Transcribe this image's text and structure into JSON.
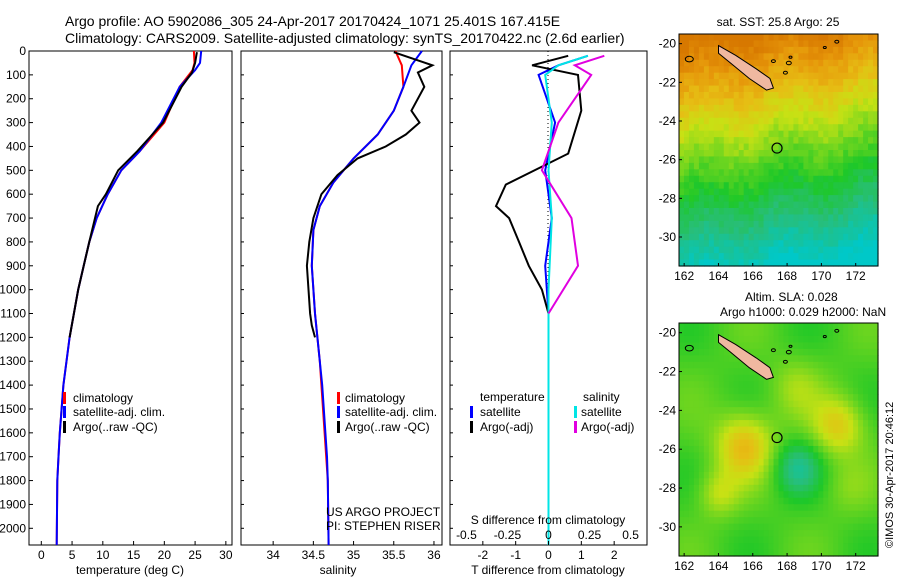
{
  "title": {
    "line1": "Argo profile: AO 5902086_305 24-Apr-2017 20170424_1071 25.401S 167.415E",
    "line2": "Climatology: CARS2009. Satellite-adjusted climatology: synTS_20170422.nc (2.6d earlier)"
  },
  "colors": {
    "climatology": "#ff0000",
    "satellite": "#0000ff",
    "argo": "#000000",
    "sal_satellite": "#00e5e5",
    "sal_argo": "#e000e0",
    "land": "#f0b8a0"
  },
  "chart_data": [
    {
      "type": "line",
      "id": "temperature",
      "xlabel": "temperature (deg C)",
      "xlim": [
        -2,
        31
      ],
      "ylim": [
        2070,
        0
      ],
      "xticks": [
        "0",
        "5",
        "10",
        "15",
        "20",
        "25",
        "30"
      ],
      "xtick_values": [
        0,
        5,
        10,
        15,
        20,
        25,
        30
      ],
      "yticks": [
        "0",
        "100",
        "200",
        "300",
        "400",
        "500",
        "600",
        "700",
        "800",
        "900",
        "1000",
        "1100",
        "1200",
        "1300",
        "1400",
        "1500",
        "1600",
        "1700",
        "1800",
        "1900",
        "2000"
      ],
      "ytick_values": [
        0,
        100,
        200,
        300,
        400,
        500,
        600,
        700,
        800,
        900,
        1000,
        1100,
        1200,
        1300,
        1400,
        1500,
        1600,
        1700,
        1800,
        1900,
        2000
      ],
      "legend": [
        "climatology",
        "satellite-adj. clim.",
        "Argo(..raw -QC)"
      ],
      "series": [
        {
          "name": "climatology",
          "color": "#ff0000",
          "x": [
            24.8,
            24.9,
            24.6,
            22.5,
            20.0,
            16.0,
            13.0,
            10.8,
            9.0,
            7.8,
            6.9,
            6.0,
            5.3,
            4.6,
            4.1,
            3.6,
            3.3,
            3.0,
            2.8,
            2.6,
            2.5
          ],
          "y": [
            0,
            50,
            80,
            150,
            300,
            420,
            500,
            600,
            700,
            800,
            900,
            1000,
            1100,
            1200,
            1300,
            1400,
            1500,
            1600,
            1700,
            1800,
            2070
          ]
        },
        {
          "name": "satellite-adj. clim.",
          "color": "#0000ff",
          "x": [
            26.0,
            25.8,
            25.0,
            22.5,
            19.5,
            16.0,
            13.0,
            10.8,
            9.0,
            7.8,
            6.9,
            6.0,
            5.3,
            4.6,
            4.1,
            3.6,
            3.3,
            3.0,
            2.8,
            2.6,
            2.5
          ],
          "y": [
            0,
            50,
            80,
            150,
            300,
            420,
            500,
            600,
            700,
            800,
            900,
            1000,
            1100,
            1200,
            1300,
            1400,
            1500,
            1600,
            1700,
            1800,
            2070
          ]
        },
        {
          "name": "Argo(..raw -QC)",
          "color": "#000000",
          "x": [
            25.3,
            25.0,
            24.5,
            22.8,
            19.8,
            15.6,
            12.5,
            10.5,
            9.2,
            7.8,
            6.9,
            6.0,
            5.3,
            4.6
          ],
          "y": [
            5,
            50,
            90,
            150,
            300,
            420,
            500,
            600,
            650,
            800,
            900,
            1000,
            1100,
            1200
          ]
        }
      ]
    },
    {
      "type": "line",
      "id": "salinity",
      "xlabel": "salinity",
      "xlim": [
        33.6,
        36.1
      ],
      "ylim": [
        2070,
        0
      ],
      "xticks": [
        "34",
        "34.5",
        "35",
        "35.5",
        "36"
      ],
      "xtick_values": [
        34,
        34.5,
        35,
        35.5,
        36
      ],
      "legend": [
        "climatology",
        "satellite-adj. clim.",
        "Argo(..raw -QC)"
      ],
      "annotations": [
        "US ARGO PROJECT",
        "PI: STEPHEN RISER"
      ],
      "series": [
        {
          "name": "climatology",
          "color": "#ff0000",
          "x": [
            35.52,
            35.6,
            35.62,
            35.5,
            35.3,
            35.0,
            34.75,
            34.58,
            34.5,
            34.48,
            34.5,
            34.52,
            34.55,
            34.58,
            34.6,
            34.62,
            34.64,
            34.66,
            34.68,
            34.69
          ],
          "y": [
            0,
            60,
            150,
            250,
            350,
            450,
            550,
            650,
            750,
            900,
            1000,
            1100,
            1200,
            1300,
            1400,
            1500,
            1600,
            1700,
            1800,
            2070
          ]
        },
        {
          "name": "satellite-adj. clim.",
          "color": "#0000ff",
          "x": [
            35.85,
            35.72,
            35.62,
            35.5,
            35.3,
            35.0,
            34.75,
            34.58,
            34.5,
            34.48,
            34.5,
            34.52,
            34.55,
            34.58,
            34.61,
            34.63,
            34.65,
            34.67,
            34.68,
            34.69
          ],
          "y": [
            0,
            60,
            150,
            250,
            350,
            450,
            550,
            650,
            750,
            900,
            1000,
            1100,
            1200,
            1300,
            1400,
            1500,
            1600,
            1700,
            1800,
            2070
          ]
        },
        {
          "name": "Argo(..raw -QC)",
          "color": "#000000",
          "x": [
            35.5,
            35.98,
            35.8,
            35.88,
            35.72,
            35.82,
            35.65,
            35.4,
            35.05,
            34.8,
            34.6,
            34.5,
            34.45,
            34.42,
            34.44,
            34.46,
            34.48,
            34.52
          ],
          "y": [
            5,
            60,
            90,
            150,
            250,
            300,
            350,
            400,
            450,
            520,
            600,
            700,
            800,
            900,
            1000,
            1100,
            1150,
            1200
          ]
        }
      ]
    },
    {
      "type": "line",
      "id": "difference",
      "xlabel_bottom": "T difference from climatology",
      "xlabel_top": "S difference from climatology",
      "xlim_T": [
        -3,
        3
      ],
      "ylim": [
        2070,
        0
      ],
      "xticks_T": [
        "-2",
        "-1",
        "0",
        "1",
        "2"
      ],
      "xtick_values_T": [
        -2,
        -1,
        0,
        1,
        2
      ],
      "xticks_S": [
        "-0.5",
        "-0.25",
        "0",
        "0.25",
        "0.5"
      ],
      "xtick_values_S": [
        -0.5,
        -0.25,
        0,
        0.25,
        0.5
      ],
      "legend_temperature": {
        "title": "temperature",
        "items": [
          "satellite",
          "Argo(-adj)"
        ]
      },
      "legend_salinity": {
        "title": "salinity",
        "items": [
          "satellite",
          "Argo(-adj)"
        ]
      },
      "series": [
        {
          "name": "temperature satellite",
          "color": "#0000ff",
          "x": [
            1.2,
            0.3,
            -0.3,
            0.2,
            -0.1,
            0.1,
            -0.1,
            0.0,
            0.0,
            0.0,
            0.0
          ],
          "y": [
            20,
            60,
            100,
            300,
            500,
            700,
            900,
            1100,
            1300,
            1600,
            2070
          ]
        },
        {
          "name": "temperature Argo(-adj)",
          "color": "#000000",
          "x": [
            0.6,
            -0.5,
            0.9,
            1.0,
            0.6,
            -1.3,
            -1.6,
            -1.2,
            -0.9,
            -0.6,
            -0.2,
            0.0,
            0.0
          ],
          "y": [
            20,
            60,
            100,
            250,
            430,
            560,
            650,
            700,
            800,
            900,
            1000,
            1100,
            1200
          ]
        },
        {
          "name": "salinity satellite",
          "color": "#00e5e5",
          "x": [
            1.2,
            0.3,
            -0.1,
            0.1,
            0.0,
            0.1,
            0.0,
            0.0,
            0.0
          ],
          "y": [
            20,
            60,
            100,
            300,
            500,
            700,
            1000,
            1300,
            2070
          ]
        },
        {
          "name": "salinity Argo(-adj)",
          "color": "#e000e0",
          "x": [
            1.7,
            0.8,
            1.3,
            0.3,
            -0.2,
            0.7,
            0.9,
            0.0
          ],
          "y": [
            20,
            60,
            100,
            300,
            500,
            700,
            900,
            1100
          ]
        }
      ]
    },
    {
      "type": "heatmap",
      "id": "sst_map",
      "title": "sat. SST: 25.8  Argo: 25",
      "xticks": [
        "162",
        "164",
        "166",
        "168",
        "170",
        "172"
      ],
      "xtick_values": [
        162,
        164,
        166,
        168,
        170,
        172
      ],
      "yticks": [
        "-20",
        "-22",
        "-24",
        "-26",
        "-28",
        "-30"
      ],
      "ytick_values": [
        -20,
        -22,
        -24,
        -26,
        -28,
        -30
      ],
      "xlim": [
        161.7,
        173.3
      ],
      "ylim": [
        -19.5,
        -31.5
      ],
      "marker": {
        "lon": 167.415,
        "lat": -25.401
      }
    },
    {
      "type": "heatmap",
      "id": "sla_map",
      "title_line1": "Altim. SLA: 0.028",
      "title_line2": "Argo h1000: 0.029 h2000: NaN",
      "xticks": [
        "162",
        "164",
        "166",
        "168",
        "170",
        "172"
      ],
      "xtick_values": [
        162,
        164,
        166,
        168,
        170,
        172
      ],
      "yticks": [
        "-20",
        "-22",
        "-24",
        "-26",
        "-28",
        "-30"
      ],
      "ytick_values": [
        -20,
        -22,
        -24,
        -26,
        -28,
        -30
      ],
      "xlim": [
        161.7,
        173.3
      ],
      "ylim": [
        -19.5,
        -31.5
      ],
      "marker": {
        "lon": 167.415,
        "lat": -25.401
      }
    }
  ],
  "credit": "©IMOS 30-Apr-2017 20:46:12"
}
